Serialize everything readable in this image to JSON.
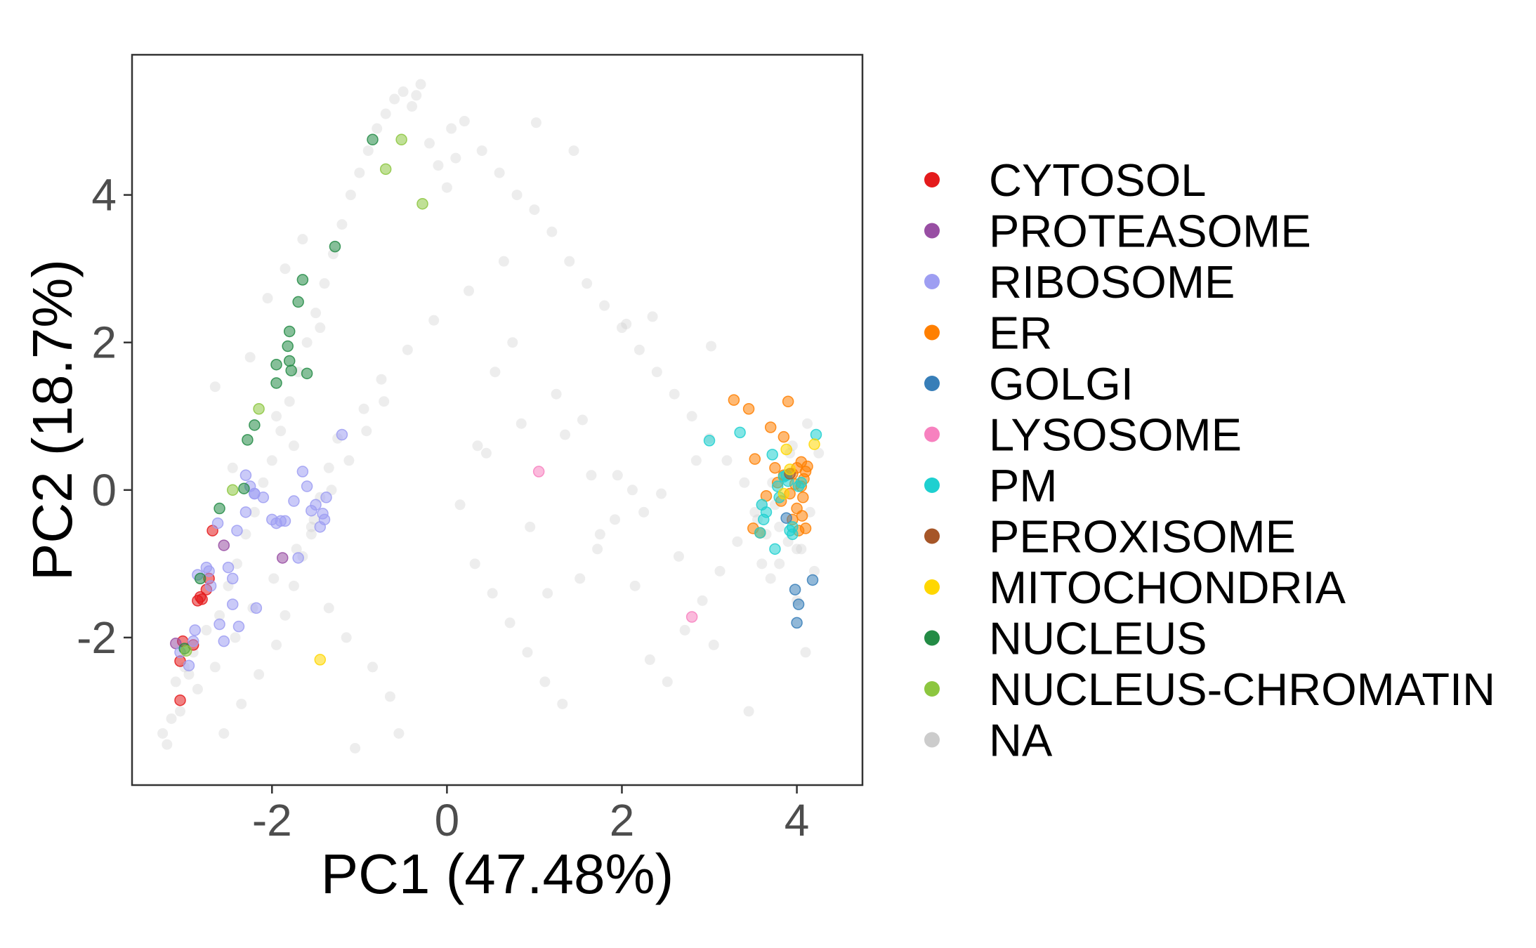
{
  "chart_data": {
    "type": "scatter",
    "xlabel": "PC1 (47.48%)",
    "ylabel": "PC2 (18.7%)",
    "xlim": [
      -3.6,
      4.75
    ],
    "ylim": [
      -4.0,
      5.9
    ],
    "x_ticks": [
      -2,
      0,
      2,
      4
    ],
    "y_ticks": [
      -2,
      0,
      2,
      4
    ],
    "x_tick_labels": [
      "-2",
      "0",
      "2",
      "4"
    ],
    "y_tick_labels": [
      "-2",
      "0",
      "2",
      "4"
    ],
    "grid": false,
    "legend_position": "right",
    "legend": [
      {
        "label": "CYTOSOL",
        "color": "#e41a1c"
      },
      {
        "label": "PROTEASOME",
        "color": "#984ea3"
      },
      {
        "label": "RIBOSOME",
        "color": "#9e9ef2"
      },
      {
        "label": "ER",
        "color": "#ff7f00"
      },
      {
        "label": "GOLGI",
        "color": "#377eb8"
      },
      {
        "label": "LYSOSOME",
        "color": "#f781bf"
      },
      {
        "label": "PM",
        "color": "#1ed0d0"
      },
      {
        "label": "PEROXISOME",
        "color": "#a65628"
      },
      {
        "label": "MITOCHONDRIA",
        "color": "#ffd700"
      },
      {
        "label": "NUCLEUS",
        "color": "#238b45"
      },
      {
        "label": "NUCLEUS-CHROMATIN",
        "color": "#8cc63f"
      },
      {
        "label": "NA",
        "color": "#cccccc"
      }
    ],
    "series": [
      {
        "name": "CYTOSOL",
        "color": "#e41a1c",
        "x": [
          -3.05,
          -3.05,
          -3.02,
          -2.9,
          -2.85,
          -2.82,
          -2.75,
          -2.72,
          -2.68,
          -2.8
        ],
        "y": [
          -2.85,
          -2.32,
          -2.05,
          -2.1,
          -1.5,
          -1.45,
          -1.35,
          -1.2,
          -0.55,
          -1.48
        ]
      },
      {
        "name": "PROTEASOME",
        "color": "#984ea3",
        "x": [
          -3.1,
          -2.55,
          -1.88
        ],
        "y": [
          -2.08,
          -0.75,
          -0.92
        ]
      },
      {
        "name": "RIBOSOME",
        "color": "#9e9ef2",
        "x": [
          -3.05,
          -2.95,
          -2.9,
          -2.88,
          -2.85,
          -2.75,
          -2.72,
          -2.7,
          -2.62,
          -2.6,
          -2.55,
          -2.5,
          -2.45,
          -2.45,
          -2.4,
          -2.38,
          -2.3,
          -2.25,
          -2.2,
          -2.18,
          -2.1,
          -2.0,
          -1.95,
          -1.9,
          -1.85,
          -1.75,
          -1.7,
          -1.65,
          -1.55,
          -1.5,
          -1.45,
          -1.42,
          -1.4,
          -1.38,
          -1.2,
          -2.2,
          -1.6,
          -2.3
        ],
        "y": [
          -2.2,
          -2.38,
          -2.05,
          -1.9,
          -1.15,
          -1.05,
          -1.1,
          -1.3,
          -0.45,
          -1.82,
          -2.05,
          -1.05,
          -1.2,
          -1.55,
          -0.55,
          -1.85,
          0.2,
          0.05,
          -0.05,
          -1.6,
          -0.1,
          -0.4,
          -0.45,
          -0.42,
          -0.42,
          -0.15,
          -0.92,
          0.25,
          -0.28,
          -0.2,
          -0.5,
          -0.32,
          -0.4,
          -0.1,
          0.75,
          -0.05,
          0.05,
          -0.3
        ]
      },
      {
        "name": "ER",
        "color": "#ff7f00",
        "x": [
          3.28,
          3.45,
          3.52,
          3.58,
          3.7,
          3.78,
          3.82,
          3.85,
          3.85,
          3.9,
          3.92,
          3.95,
          3.95,
          3.98,
          4.0,
          4.0,
          4.02,
          4.05,
          4.05,
          4.06,
          4.07,
          4.08,
          4.1,
          4.1,
          4.12,
          3.5,
          3.65,
          3.75
        ],
        "y": [
          1.22,
          1.1,
          0.42,
          -0.58,
          0.85,
          0.1,
          -0.15,
          0.2,
          0.72,
          1.2,
          -0.05,
          0.22,
          -0.4,
          0.08,
          0.3,
          -0.25,
          -0.55,
          0.38,
          0.05,
          -0.35,
          -0.1,
          0.15,
          0.25,
          -0.52,
          0.32,
          -0.52,
          -0.08,
          0.3
        ]
      },
      {
        "name": "GOLGI",
        "color": "#377eb8",
        "x": [
          3.98,
          4.02,
          4.0,
          4.18,
          3.88
        ],
        "y": [
          -1.35,
          -1.55,
          -1.8,
          -1.22,
          -0.38
        ]
      },
      {
        "name": "LYSOSOME",
        "color": "#f781bf",
        "x": [
          1.05,
          2.8
        ],
        "y": [
          0.25,
          -1.72
        ]
      },
      {
        "name": "PM",
        "color": "#1ed0d0",
        "x": [
          3.0,
          3.35,
          3.58,
          3.6,
          3.62,
          3.72,
          3.75,
          3.78,
          3.8,
          3.85,
          3.9,
          3.92,
          3.95,
          4.02,
          4.05,
          4.22,
          3.95,
          3.88,
          3.65
        ],
        "y": [
          0.67,
          0.78,
          -0.58,
          -0.2,
          -0.4,
          0.48,
          -0.8,
          0.05,
          -0.1,
          0.18,
          0.12,
          -0.55,
          -0.6,
          0.05,
          0.1,
          0.75,
          -0.5,
          0.2,
          -0.3
        ]
      },
      {
        "name": "PEROXISOME",
        "color": "#a65628",
        "x": [
          3.92
        ],
        "y": [
          0.22
        ]
      },
      {
        "name": "MITOCHONDRIA",
        "color": "#ffd700",
        "x": [
          -1.45,
          3.88,
          3.92,
          4.2,
          3.85
        ],
        "y": [
          -2.3,
          0.55,
          0.28,
          0.62,
          -0.05
        ]
      },
      {
        "name": "NUCLEUS",
        "color": "#238b45",
        "x": [
          -0.85,
          -1.28,
          -1.65,
          -1.7,
          -1.8,
          -1.82,
          -1.8,
          -1.78,
          -1.95,
          -1.95,
          -2.2,
          -2.28,
          -2.32,
          -2.6,
          -2.82,
          -1.6,
          -3.0
        ],
        "y": [
          4.75,
          3.3,
          2.85,
          2.55,
          2.15,
          1.95,
          1.75,
          1.62,
          1.7,
          1.45,
          0.88,
          0.68,
          0.02,
          -0.25,
          -1.2,
          1.58,
          -2.15
        ]
      },
      {
        "name": "NUCLEUS-CHROMATIN",
        "color": "#8cc63f",
        "x": [
          -0.52,
          -0.7,
          -0.28,
          -2.15,
          -2.45,
          -2.98
        ],
        "y": [
          4.75,
          4.35,
          3.88,
          1.1,
          0.0,
          -2.18
        ]
      }
    ],
    "na_series": {
      "name": "NA",
      "color": "#cccccc",
      "x": [
        -3.25,
        -3.15,
        -3.1,
        -3.0,
        -2.9,
        -2.75,
        -2.6,
        -2.5,
        -2.4,
        -2.3,
        -2.2,
        -2.1,
        -2.0,
        -1.9,
        -1.8,
        -1.7,
        -1.6,
        -1.5,
        -1.4,
        -1.3,
        -1.2,
        -1.1,
        -1.0,
        -0.9,
        -0.8,
        -0.7,
        -0.6,
        -0.5,
        -0.4,
        -0.3,
        -0.2,
        -0.1,
        0.0,
        0.1,
        0.2,
        0.4,
        0.6,
        0.8,
        1.0,
        1.2,
        1.4,
        1.6,
        1.8,
        2.0,
        2.2,
        2.4,
        2.6,
        2.8,
        3.0,
        3.2,
        3.4,
        3.6,
        3.8,
        4.0,
        4.2,
        -0.35,
        0.05,
        1.02,
        1.45,
        0.65,
        2.35,
        3.02,
        2.05,
        -1.05,
        -0.55,
        -2.85,
        -2.65,
        -2.42,
        -2.22,
        -1.98,
        -1.72,
        -1.52,
        -1.32,
        -1.12,
        -0.92,
        -0.72,
        0.32,
        0.52,
        0.72,
        0.92,
        1.12,
        1.32,
        1.52,
        1.72,
        1.92,
        2.12,
        2.32,
        2.52,
        2.72,
        2.92,
        3.12,
        3.32,
        3.52,
        3.72,
        3.92,
        4.12,
        -3.2,
        -3.05,
        -2.95,
        -2.55,
        -2.35,
        -2.15,
        -1.95,
        -1.85,
        -1.75,
        -1.65,
        -1.55,
        -1.45,
        -1.35,
        -1.25,
        -0.95,
        -0.75,
        -0.45,
        -0.15,
        0.25,
        0.45,
        0.85,
        1.25,
        1.65,
        2.25,
        2.65,
        3.55,
        3.65,
        3.75,
        3.85,
        3.95,
        4.05,
        4.15,
        4.25,
        3.6,
        3.7,
        3.8,
        3.9,
        4.0,
        4.1,
        -2.05,
        -1.85,
        -1.65,
        -1.45,
        -2.45,
        -2.65,
        -2.25,
        -1.95,
        -1.75,
        -1.55,
        -1.35,
        -1.15,
        -0.85,
        -0.65,
        0.15,
        0.35,
        0.55,
        0.75,
        0.95,
        1.15,
        1.35,
        1.55,
        1.75,
        1.95,
        2.15,
        2.45,
        2.85,
        3.05,
        3.45
      ],
      "y": [
        -3.3,
        -3.1,
        -2.6,
        -2.4,
        -2.2,
        -1.9,
        -1.7,
        -1.3,
        -1.0,
        -0.6,
        -0.3,
        0.1,
        0.4,
        0.8,
        1.2,
        1.6,
        2.0,
        2.4,
        2.8,
        3.2,
        3.6,
        4.0,
        4.3,
        4.6,
        4.9,
        5.1,
        5.3,
        5.4,
        5.2,
        5.5,
        4.7,
        4.4,
        4.1,
        4.5,
        5.0,
        4.6,
        4.3,
        4.0,
        3.8,
        3.5,
        3.1,
        2.8,
        2.5,
        2.2,
        1.9,
        1.6,
        1.3,
        1.0,
        0.7,
        0.4,
        0.1,
        -0.2,
        -0.5,
        -0.8,
        -1.1,
        5.35,
        4.9,
        4.98,
        4.6,
        3.1,
        2.35,
        1.95,
        2.25,
        -3.5,
        -3.3,
        -2.7,
        -2.4,
        -2.0,
        -1.6,
        -1.2,
        -0.8,
        -0.4,
        0.0,
        0.4,
        0.8,
        1.2,
        -1.0,
        -1.4,
        -1.8,
        -2.2,
        -2.6,
        -2.9,
        -1.2,
        -0.8,
        -0.4,
        0.0,
        -2.3,
        -2.6,
        -1.9,
        -1.5,
        -1.1,
        -0.7,
        -0.3,
        0.1,
        0.5,
        0.9,
        -3.45,
        -3.0,
        -2.5,
        -3.3,
        -2.9,
        -2.5,
        -2.1,
        -1.7,
        -1.3,
        -0.9,
        -0.5,
        -0.1,
        0.3,
        0.7,
        1.1,
        1.5,
        1.9,
        2.3,
        2.7,
        0.5,
        0.9,
        1.3,
        0.2,
        -0.3,
        -0.9,
        -0.4,
        -0.6,
        -0.2,
        0.2,
        0.6,
        -0.8,
        -0.3,
        0.5,
        -1.0,
        -1.2,
        -1.0,
        -0.7,
        -1.5,
        -2.2,
        2.6,
        3.0,
        3.4,
        2.2,
        0.3,
        1.4,
        1.8,
        1.0,
        0.6,
        -0.6,
        -1.6,
        -2.0,
        -2.4,
        -2.8,
        -0.2,
        0.6,
        1.6,
        2.0,
        -0.5,
        -1.4,
        0.75,
        0.95,
        -0.6,
        0.2,
        -1.3,
        -0.05,
        0.4,
        -2.1,
        -3.0
      ]
    }
  }
}
